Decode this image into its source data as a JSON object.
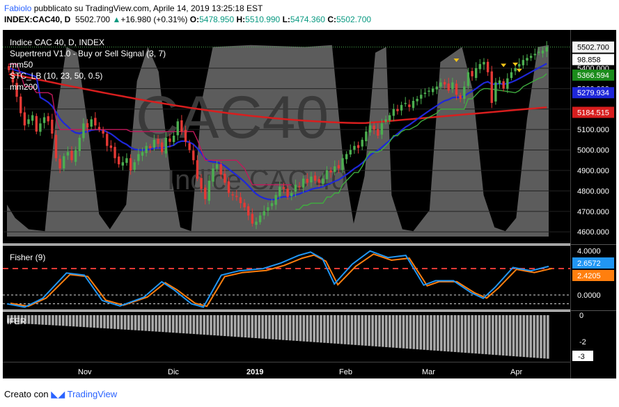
{
  "header": {
    "author": "Fabiolo",
    "published": " pubblicato su TradingView.com, Aprile 14, 2019 13:25:18 EST",
    "symbol": "INDEX:CAC40, D",
    "last": "5502.700",
    "change": "+16.980 (+0.31%)",
    "o_label": "O:",
    "o": "5478.950",
    "h_label": "H:",
    "h": "5510.990",
    "l_label": "L:",
    "l": "5474.360",
    "c_label": "C:",
    "c": "5502.700"
  },
  "legend": {
    "main_title": "Indice CAC 40, D, INDEX",
    "supertrend": "Supertrend V1.0 - Buy or Sell Signal (3, 7)",
    "mm50": "mm50",
    "stc": "STC_LB (10, 23, 50, 0.5)",
    "mm200": "mm200",
    "fisher": "Fisher (9)",
    "ifer": "IFER"
  },
  "watermark": {
    "big": "CAC40",
    "small": "Indice CAC 40"
  },
  "footer": {
    "created_with": "Creato con",
    "brand": "TradingView"
  },
  "colors": {
    "up": "#4caf50",
    "down": "#e53935",
    "mm50": "#1e27d9",
    "mm200": "#d81e1e",
    "supertrend_up": "#3fae3f",
    "supertrend_down": "#c2185b",
    "stc": "#888888",
    "fisher": "#2196f3",
    "fisher_signal": "#ff7f0e",
    "ifer": "#a9a9a9"
  },
  "chart_data": [
    {
      "type": "candlestick",
      "title": "Indice CAC 40, D, INDEX",
      "ylim": [
        4560,
        5580
      ],
      "y_ticks": [
        "4600.000",
        "4700.000",
        "4800.000",
        "4900.000",
        "5000.000",
        "5100.000",
        "5200.000",
        "5300.000",
        "5400.000"
      ],
      "x_ticks": [
        "Nov",
        "Dic",
        "2019",
        "Feb",
        "Mar",
        "Apr"
      ],
      "closes": [
        5390,
        5330,
        5260,
        5180,
        5120,
        5150,
        5170,
        5090,
        5130,
        5160,
        5140,
        5080,
        4960,
        4910,
        4970,
        4990,
        4950,
        5000,
        5060,
        5130,
        5110,
        5150,
        5120,
        5100,
        5080,
        5020,
        5010,
        4960,
        4930,
        4940,
        4960,
        4900,
        4940,
        4980,
        4990,
        5020,
        5010,
        5050,
        5030,
        4990,
        5060,
        5040,
        5070,
        5140,
        5090,
        5040,
        5000,
        4950,
        4860,
        4810,
        4760,
        4850,
        4910,
        4930,
        4880,
        4840,
        4790,
        4780,
        4770,
        4740,
        4720,
        4680,
        4640,
        4650,
        4680,
        4700,
        4720,
        4740,
        4780,
        4820,
        4810,
        4770,
        4790,
        4830,
        4820,
        4860,
        4840,
        4870,
        4850,
        4840,
        4860,
        4900,
        4890,
        4920,
        4910,
        4960,
        4980,
        5000,
        5020,
        5010,
        5050,
        5090,
        5120,
        5100,
        5070,
        5130,
        5150,
        5170,
        5200,
        5190,
        5220,
        5230,
        5210,
        5240,
        5250,
        5270,
        5280,
        5290,
        5300,
        5310,
        5330,
        5320,
        5290,
        5330,
        5270,
        5250,
        5310,
        5380,
        5360,
        5400,
        5420,
        5430,
        5380,
        5230,
        5330,
        5340,
        5300,
        5350,
        5380,
        5400,
        5420,
        5440,
        5450,
        5460,
        5470,
        5480,
        5486,
        5503
      ],
      "price_labels": [
        "5502.700",
        "98.858",
        "5366.594",
        "5279.934",
        "5184.515"
      ],
      "last_close": "5502.700",
      "series": [
        {
          "name": "mm50",
          "last": "5279.934"
        },
        {
          "name": "mm200",
          "last": "5184.515"
        },
        {
          "name": "Supertrend V1.0 - Buy or Sell Signal (3, 7)",
          "last": "5366.594"
        },
        {
          "name": "STC_LB (10, 23, 50, 0.5)",
          "last": "98.858"
        }
      ]
    },
    {
      "type": "line",
      "title": "Fisher (9)",
      "ylim": [
        -1.2,
        4.3
      ],
      "y_ticks": [
        "4.0000",
        "0.0000"
      ],
      "dashed_levels": [
        2.4,
        0.0
      ],
      "series": [
        {
          "name": "Fisher",
          "last": "2.6572"
        },
        {
          "name": "Signal",
          "last": "2.4205"
        }
      ]
    },
    {
      "type": "bar",
      "title": "IFER",
      "ylim": [
        -3.2,
        0
      ],
      "y_ticks": [
        "0",
        "-2",
        "-3"
      ],
      "last": "-3"
    }
  ]
}
